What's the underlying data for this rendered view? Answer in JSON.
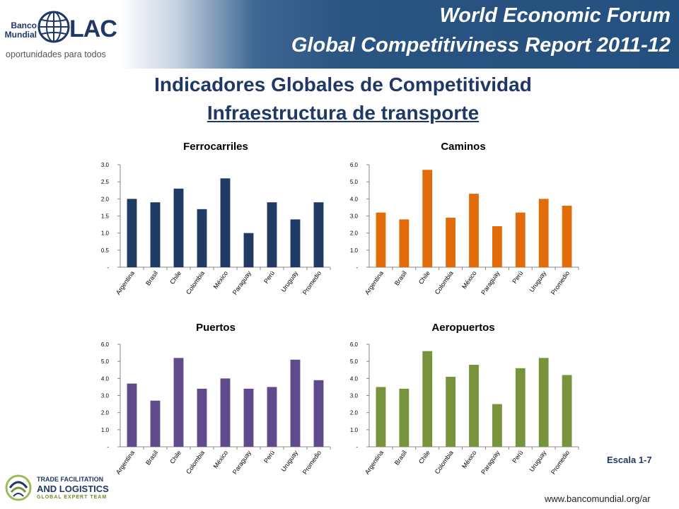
{
  "header": {
    "line1": "World Economic Forum",
    "line2": "Global Competitiviness Report 2011-12"
  },
  "logo": {
    "banco": "Banco",
    "mundial": "Mundial",
    "lac": "LAC",
    "tagline": "oportunidades para todos"
  },
  "title": "Indicadores Globales de Competitividad",
  "subtitle": "Infraestructura de transporte",
  "footer": {
    "escala": "Escala 1-7",
    "website": "www.bancomundial.org/ar",
    "tfl_line1": "TRADE FACILITATION",
    "tfl_line2": "AND LOGISTICS",
    "tfl_line3": "GLOBAL EXPERT TEAM"
  },
  "chart_data": [
    {
      "type": "bar",
      "title": "Ferrocarriles",
      "categories": [
        "Argentina",
        "Brasil",
        "Chile",
        "Colombia",
        "México",
        "Paraguay",
        "Perú",
        "Uruguay",
        "Promedio"
      ],
      "values": [
        2.0,
        1.9,
        2.3,
        1.7,
        2.6,
        1.0,
        1.9,
        1.4,
        1.9
      ],
      "ylim": [
        0,
        3.0
      ],
      "yticks": [
        "-",
        "0.5",
        "1.0",
        "1.5",
        "2.0",
        "2.5",
        "3.0"
      ],
      "color": "#1f3b63"
    },
    {
      "type": "bar",
      "title": "Caminos",
      "categories": [
        "Argentina",
        "Brasil",
        "Chile",
        "Colombia",
        "México",
        "Paraguay",
        "Perú",
        "Uruguay",
        "Promedio"
      ],
      "values": [
        3.2,
        2.8,
        5.7,
        2.9,
        4.3,
        2.4,
        3.2,
        4.0,
        3.6
      ],
      "ylim": [
        0,
        6.0
      ],
      "yticks": [
        "-",
        "1.0",
        "2.0",
        "3.0",
        "4.0",
        "5.0",
        "6.0"
      ],
      "color": "#e36c0a"
    },
    {
      "type": "bar",
      "title": "Puertos",
      "categories": [
        "Argentina",
        "Brasil",
        "Chile",
        "Colombia",
        "México",
        "Paraguay",
        "Perú",
        "Uruguay",
        "Promedio"
      ],
      "values": [
        3.7,
        2.7,
        5.2,
        3.4,
        4.0,
        3.4,
        3.5,
        5.1,
        3.9
      ],
      "ylim": [
        0,
        6.0
      ],
      "yticks": [
        "-",
        "1.0",
        "2.0",
        "3.0",
        "4.0",
        "5.0",
        "6.0"
      ],
      "color": "#5f4b8b"
    },
    {
      "type": "bar",
      "title": "Aeropuertos",
      "categories": [
        "Argentina",
        "Brasil",
        "Chile",
        "Colombia",
        "México",
        "Paraguay",
        "Perú",
        "Uruguay",
        "Promedio"
      ],
      "values": [
        3.5,
        3.4,
        5.6,
        4.1,
        4.8,
        2.5,
        4.6,
        5.2,
        4.2
      ],
      "ylim": [
        0,
        6.0
      ],
      "yticks": [
        "-",
        "1.0",
        "2.0",
        "3.0",
        "4.0",
        "5.0",
        "6.0"
      ],
      "color": "#77933c"
    }
  ]
}
